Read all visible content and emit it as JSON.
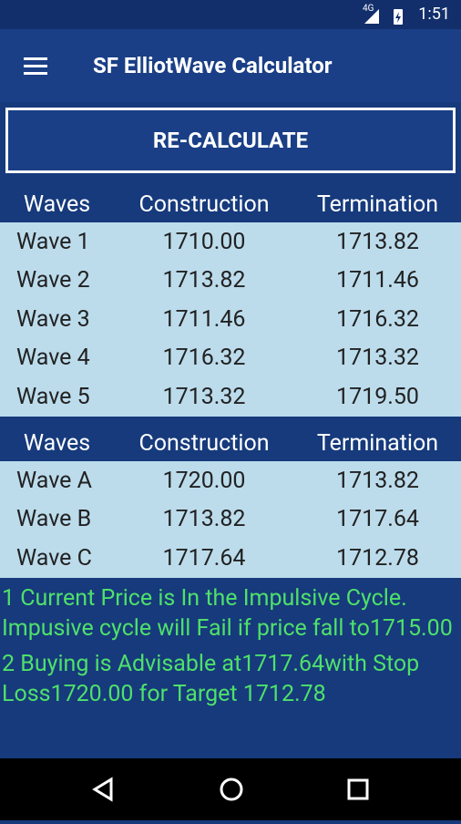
{
  "status": {
    "network": "4G",
    "time": "1:51"
  },
  "app_bar": {
    "title": "SF ElliotWave Calculator"
  },
  "button": "RE-CALCULATE",
  "tables": [
    {
      "headers": [
        "Waves",
        "Construction",
        "Termination"
      ],
      "rows": [
        [
          "Wave 1",
          "1710.00",
          "1713.82"
        ],
        [
          "Wave 2",
          "1713.82",
          "1711.46"
        ],
        [
          "Wave 3",
          "1711.46",
          "1716.32"
        ],
        [
          "Wave 4",
          "1716.32",
          "1713.32"
        ],
        [
          "Wave 5",
          "1713.32",
          "1719.50"
        ]
      ]
    },
    {
      "headers": [
        "Waves",
        "Construction",
        "Termination"
      ],
      "rows": [
        [
          "Wave A",
          "1720.00",
          "1713.82"
        ],
        [
          "Wave B",
          "1713.82",
          "1717.64"
        ],
        [
          "Wave C",
          "1717.64",
          "1712.78"
        ]
      ]
    }
  ],
  "messages": [
    "1 Current Price is In the Impulsive Cycle. Impusive cycle will Fail if price fall to1715.00",
    "2 Buying is Advisable at1717.64with Stop Loss1720.00 for Target 1712.78"
  ]
}
